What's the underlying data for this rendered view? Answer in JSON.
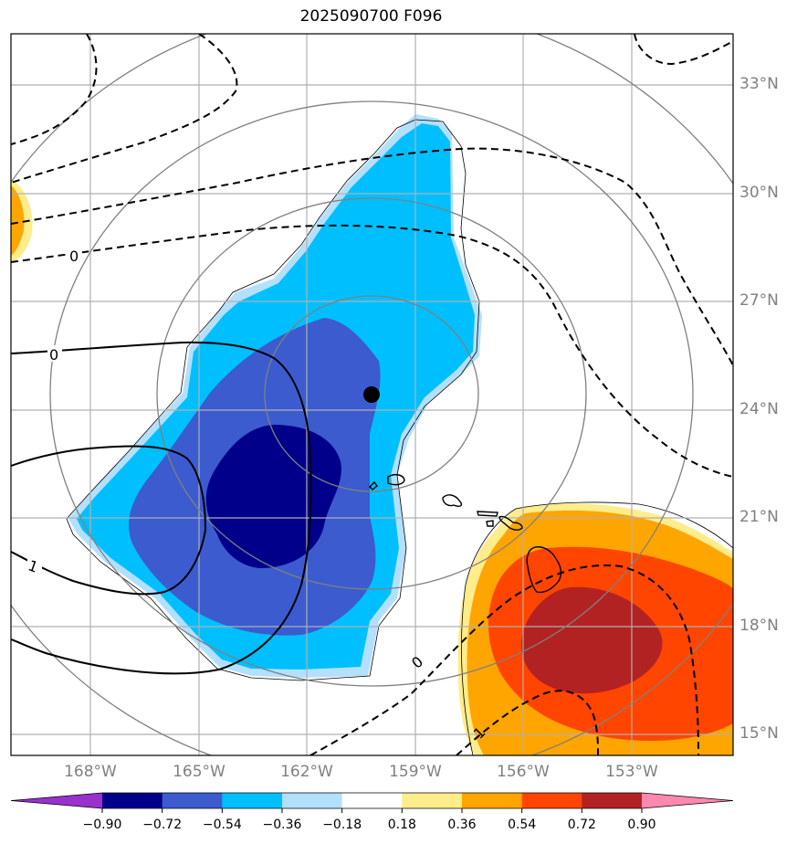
{
  "title": "2025090700 F096",
  "lat_labels": [
    "33°N",
    "30°N",
    "27°N",
    "24°N",
    "21°N",
    "18°N",
    "15°N"
  ],
  "lon_labels": [
    "168°W",
    "165°W",
    "162°W",
    "159°W",
    "156°W",
    "153°W"
  ],
  "contour_labels": [
    "0",
    "0",
    "1",
    "0",
    "1"
  ],
  "colorbar": {
    "ticks": [
      "−0.90",
      "−0.72",
      "−0.54",
      "−0.36",
      "−0.18",
      "0.18",
      "0.36",
      "0.54",
      "0.72",
      "0.90"
    ],
    "colors": [
      "#9932cc",
      "#00008b",
      "#3b5bcf",
      "#00bfff",
      "#b3e0ff",
      "#ffffff",
      "#ffec8b",
      "#ffa500",
      "#ff4500",
      "#b22222",
      "#ff88b0"
    ]
  },
  "map": {
    "lat_range": [
      14.5,
      34.5
    ],
    "lon_range": [
      -170,
      -150
    ],
    "storm_center": {
      "lon": -160.0,
      "lat": 24.4
    }
  }
}
